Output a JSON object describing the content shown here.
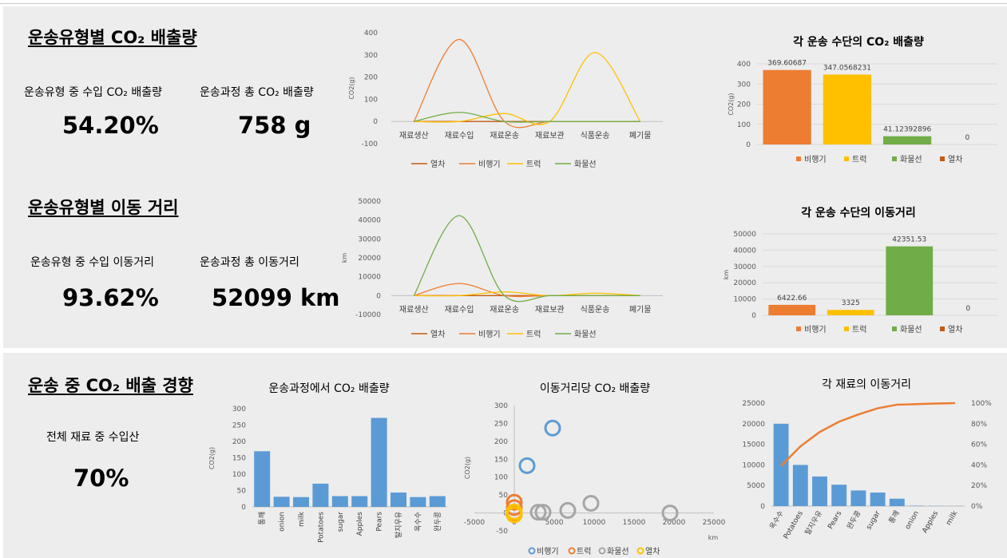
{
  "section1": {
    "title": "운송유형별 CO₂ 배출량",
    "stats": [
      {
        "label": "운송유형 중 수입 CO₂ 배출량",
        "value": "54.20%"
      },
      {
        "label": "운송과정 총 CO₂ 배출량",
        "value": "758 g"
      }
    ]
  },
  "section2": {
    "title": "운송유형별 이동 거리",
    "stats": [
      {
        "label": "운송유형 중 수입 이동거리",
        "value": "93.62%"
      },
      {
        "label": "운송과정 총 이동거리",
        "value": "52099 km"
      }
    ]
  },
  "section3": {
    "title": "운송 중 CO₂ 배출 경향",
    "stats": [
      {
        "label": "전체 재료 중 수입산",
        "value": "70%"
      }
    ]
  },
  "colors": {
    "train": "#c55a11",
    "airplane": "#ed7d31",
    "truck": "#ffc000",
    "ship": "#70ad47",
    "blue": "#5b9bd5",
    "grey": "#a5a5a5",
    "axis_text": "#595959",
    "grid": "#d9d9d9"
  },
  "chart_data": [
    {
      "id": "line-co2",
      "type": "line",
      "title": "",
      "categories": [
        "재료생산",
        "재료수입",
        "재료운송",
        "재료보관",
        "식품운송",
        "폐기물"
      ],
      "ylabel": "CO2(g)",
      "ylim": [
        -100,
        400
      ],
      "yticks": [
        -100,
        0,
        100,
        200,
        300,
        400
      ],
      "smooth": true,
      "grid": false,
      "legend_position": "bottom",
      "series": [
        {
          "name": "열차",
          "color": "#c55a11",
          "values": [
            0,
            0,
            0,
            0,
            0,
            0
          ]
        },
        {
          "name": "비행기",
          "color": "#ed7d31",
          "values": [
            0,
            369.6,
            0,
            0,
            0,
            0
          ]
        },
        {
          "name": "트럭",
          "color": "#ffc000",
          "values": [
            0,
            0,
            36,
            0,
            311,
            0
          ]
        },
        {
          "name": "화물선",
          "color": "#70ad47",
          "values": [
            0,
            41.1,
            0,
            0,
            0,
            0
          ]
        }
      ]
    },
    {
      "id": "line-distance",
      "type": "line",
      "title": "",
      "categories": [
        "재료생산",
        "재료수입",
        "재료운송",
        "재료보관",
        "식품운송",
        "폐기물"
      ],
      "ylabel": "km",
      "ylim": [
        -10000,
        50000
      ],
      "yticks": [
        -10000,
        0,
        10000,
        20000,
        30000,
        40000,
        50000
      ],
      "smooth": true,
      "grid": false,
      "legend_position": "bottom",
      "series": [
        {
          "name": "열차",
          "color": "#c55a11",
          "values": [
            0,
            0,
            0,
            0,
            0,
            0
          ]
        },
        {
          "name": "비행기",
          "color": "#ed7d31",
          "values": [
            0,
            6422.66,
            0,
            0,
            0,
            0
          ]
        },
        {
          "name": "트럭",
          "color": "#ffc000",
          "values": [
            0,
            0,
            2000,
            0,
            1300,
            0
          ]
        },
        {
          "name": "화물선",
          "color": "#70ad47",
          "values": [
            0,
            42351.53,
            0,
            0,
            0,
            0
          ]
        }
      ]
    },
    {
      "id": "bar-co2-mode",
      "type": "bar",
      "title": "각 운송 수단의 CO₂ 배출량",
      "categories": [
        "비행기",
        "트럭",
        "화물선",
        "열차"
      ],
      "values": [
        369.60687,
        347.0568231,
        41.12392896,
        0
      ],
      "value_labels": [
        "369.60687",
        "347.0568231",
        "41.12392896",
        "0"
      ],
      "colors": [
        "#ed7d31",
        "#ffc000",
        "#70ad47",
        "#c55a11"
      ],
      "ylabel": "CO2(g)",
      "ylim": [
        0,
        400
      ],
      "yticks": [
        0,
        100,
        200,
        300,
        400
      ],
      "grid": true,
      "legend_position": "bottom"
    },
    {
      "id": "bar-distance-mode",
      "type": "bar",
      "title": "각 운송 수단의 이동거리",
      "categories": [
        "비행기",
        "트럭",
        "화물선",
        "열차"
      ],
      "values": [
        6422.66,
        3325,
        42351.53,
        0
      ],
      "value_labels": [
        "6422.66",
        "3325",
        "42351.53",
        "0"
      ],
      "colors": [
        "#ed7d31",
        "#ffc000",
        "#70ad47",
        "#c55a11"
      ],
      "ylabel": "km",
      "ylim": [
        0,
        50000
      ],
      "yticks": [
        0,
        10000,
        20000,
        30000,
        40000,
        50000
      ],
      "grid": true,
      "legend_position": "bottom"
    },
    {
      "id": "bar-co2-ingredient",
      "type": "bar",
      "title": "운송과정에서 CO₂ 배출량",
      "categories": [
        "통깨",
        "onion",
        "milk",
        "Potatoes",
        "sugar",
        "Apples",
        "Pears",
        "탈지우유",
        "옥수수",
        "완두콩"
      ],
      "values": [
        170,
        31,
        30,
        71,
        33,
        33,
        272,
        44,
        30,
        33
      ],
      "color": "#5b9bd5",
      "ylabel": "CO2(g)",
      "ylim": [
        0,
        300
      ],
      "yticks": [
        0,
        50,
        100,
        150,
        200,
        250,
        300
      ],
      "grid": false
    },
    {
      "id": "bubble-co2-distance",
      "type": "scatter",
      "title": "이동거리당 CO₂ 배출량",
      "xlabel": "km",
      "ylabel": "CO2(g)",
      "xlim": [
        -5000,
        25000
      ],
      "ylim": [
        -50,
        300
      ],
      "xticks": [
        -5000,
        0,
        5000,
        10000,
        15000,
        20000,
        25000
      ],
      "yticks": [
        -50,
        0,
        50,
        100,
        150,
        200,
        250,
        300
      ],
      "grid": false,
      "legend_position": "bottom",
      "series": [
        {
          "name": "비행기",
          "color": "#5b9bd5",
          "points": [
            [
              1600,
              132
            ],
            [
              4800,
              237
            ]
          ]
        },
        {
          "name": "트럭",
          "color": "#ed7d31",
          "points": [
            [
              0,
              30
            ],
            [
              0,
              15
            ],
            [
              0,
              0
            ]
          ]
        },
        {
          "name": "화물선",
          "color": "#a5a5a5",
          "points": [
            [
              3000,
              2
            ],
            [
              3600,
              2
            ],
            [
              6700,
              7
            ],
            [
              9600,
              27
            ],
            [
              19500,
              0
            ]
          ]
        },
        {
          "name": "열차",
          "color": "#ffc000",
          "points": [
            [
              0,
              -5
            ],
            [
              0,
              3
            ]
          ]
        }
      ]
    },
    {
      "id": "pareto-distance",
      "type": "bar",
      "title": "각 재료의 이동거리",
      "categories": [
        "옥수수",
        "Potatoes",
        "탈지우유",
        "Pears",
        "완두콩",
        "sugar",
        "통깨",
        "onion",
        "Apples",
        "milk"
      ],
      "values": [
        20000,
        10000,
        7200,
        5200,
        3800,
        3300,
        1800,
        100,
        50,
        30
      ],
      "color": "#5b9bd5",
      "ylim": [
        0,
        25000
      ],
      "yticks": [
        0,
        5000,
        10000,
        15000,
        20000,
        25000
      ],
      "y2lim": [
        0,
        100
      ],
      "y2ticks": [
        "0%",
        "20%",
        "40%",
        "60%",
        "80%",
        "100%"
      ],
      "cumulative_series": {
        "name": "",
        "color": "#ed7d31",
        "values": [
          39,
          58,
          72,
          82,
          89,
          95,
          98.5,
          99,
          99.6,
          100
        ]
      },
      "grid": false
    }
  ]
}
